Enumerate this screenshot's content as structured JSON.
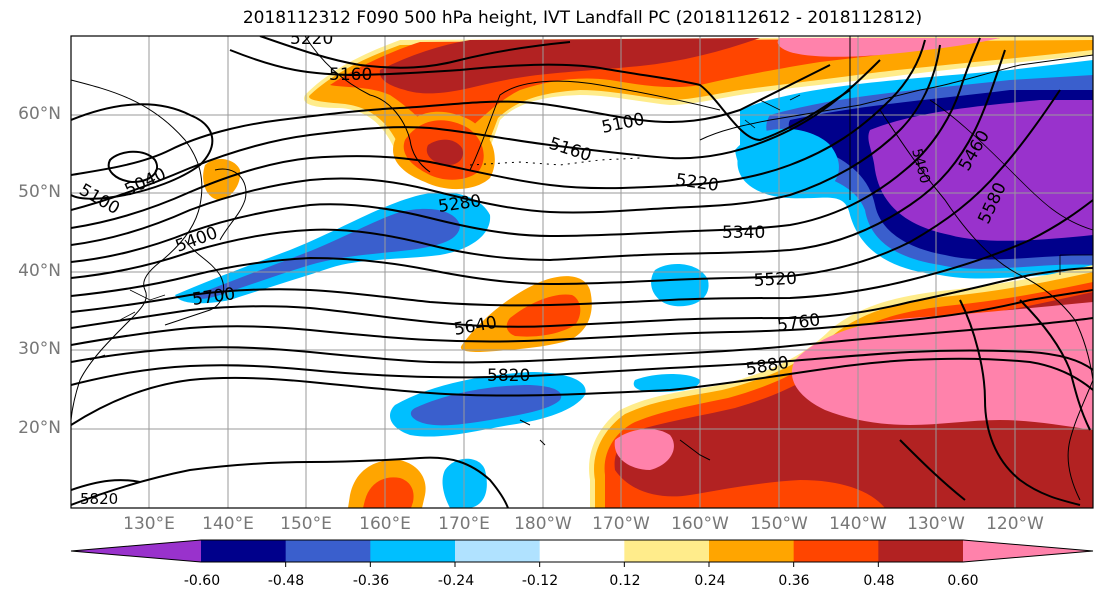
{
  "title": "2018112312 F090 500 hPa height, IVT Landfall PC (2018112612 - 2018112812)",
  "lat_labels": [
    "60°N",
    "50°N",
    "40°N",
    "30°N",
    "20°N"
  ],
  "lon_labels": [
    "130°E",
    "140°E",
    "150°E",
    "160°E",
    "170°E",
    "180°W",
    "170°W",
    "160°W",
    "150°W",
    "140°W",
    "130°W",
    "120°W"
  ],
  "contour_labels": [
    "5220",
    "5160",
    "5100",
    "5040",
    "5100",
    "5160",
    "5220",
    "5280",
    "5340",
    "5400",
    "5460",
    "5520",
    "5580",
    "5640",
    "5700",
    "5760",
    "5820",
    "5880",
    "5820",
    "5460"
  ],
  "colorbar": {
    "tick_labels": [
      "-0.60",
      "-0.48",
      "-0.36",
      "-0.24",
      "-0.12",
      "0.12",
      "0.24",
      "0.36",
      "0.48",
      "0.60"
    ],
    "colors": [
      "#9932CC",
      "#00008B",
      "#3A5FCD",
      "#00BFFF",
      "#B0E2FF",
      "#FFFFFF",
      "#FFEC8B",
      "#FFA500",
      "#FF4500",
      "#B22222",
      "#FF82AB"
    ]
  }
}
